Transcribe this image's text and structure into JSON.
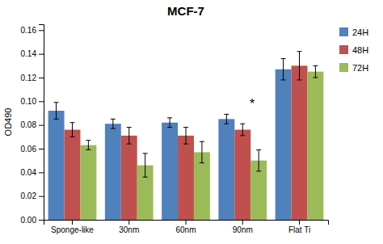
{
  "chart_data": {
    "type": "bar",
    "title": "MCF-7",
    "ylabel": "OD490",
    "categories": [
      "Sponge-like",
      "30nm",
      "60nm",
      "90nm",
      "Flat Ti"
    ],
    "series": [
      {
        "name": "24H",
        "color": "#4F81BD",
        "values": [
          0.092,
          0.081,
          0.082,
          0.085,
          0.127
        ],
        "errors": [
          0.007,
          0.004,
          0.004,
          0.004,
          0.009
        ]
      },
      {
        "name": "48H",
        "color": "#C0504D",
        "values": [
          0.076,
          0.071,
          0.071,
          0.076,
          0.13
        ],
        "errors": [
          0.006,
          0.007,
          0.007,
          0.005,
          0.012
        ]
      },
      {
        "name": "72H",
        "color": "#9BBB59",
        "values": [
          0.063,
          0.046,
          0.057,
          0.05,
          0.125
        ],
        "errors": [
          0.004,
          0.01,
          0.009,
          0.009,
          0.005
        ]
      }
    ],
    "annotations": [
      {
        "text": "*",
        "category": "90nm",
        "y": 0.1
      }
    ],
    "ylim": [
      0,
      0.165
    ],
    "yticks": [
      {
        "value": 0,
        "label": "0.00"
      },
      0.02,
      0.04,
      0.06,
      0.08,
      {
        "value": 0.1,
        "label": "0.10"
      },
      0.12,
      0.14,
      0.16
    ],
    "grid": false,
    "legend": "right"
  }
}
